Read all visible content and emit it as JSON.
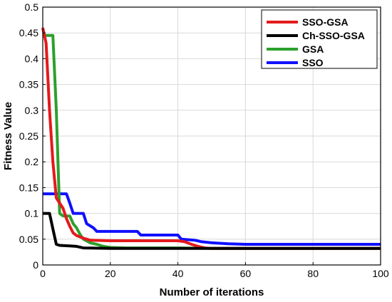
{
  "chart_data": {
    "type": "line",
    "xlabel": "Number of iterations",
    "ylabel": "Fitness Value",
    "xlim": [
      0,
      100
    ],
    "ylim": [
      0,
      0.5
    ],
    "x_ticks": [
      "0",
      "20",
      "40",
      "60",
      "80",
      "100"
    ],
    "y_ticks": [
      "0",
      "0.05",
      "0.1",
      "0.15",
      "0.2",
      "0.25",
      "0.3",
      "0.35",
      "0.4",
      "0.45",
      "0.5"
    ],
    "grid": true,
    "legend_position": "top-right",
    "series": [
      {
        "name": "SSO-GSA",
        "color": "#e31a1c",
        "points": [
          [
            0,
            0.46
          ],
          [
            1,
            0.43
          ],
          [
            2,
            0.3
          ],
          [
            3,
            0.2
          ],
          [
            4,
            0.13
          ],
          [
            6,
            0.11
          ],
          [
            7,
            0.09
          ],
          [
            8,
            0.075
          ],
          [
            9,
            0.062
          ],
          [
            10,
            0.057
          ],
          [
            12,
            0.052
          ],
          [
            14,
            0.048
          ],
          [
            20,
            0.047
          ],
          [
            30,
            0.047
          ],
          [
            40,
            0.047
          ],
          [
            42,
            0.045
          ],
          [
            44,
            0.04
          ],
          [
            46,
            0.036
          ],
          [
            48,
            0.033
          ],
          [
            50,
            0.032
          ],
          [
            60,
            0.032
          ],
          [
            80,
            0.032
          ],
          [
            100,
            0.032
          ]
        ]
      },
      {
        "name": "Ch-SSO-GSA",
        "color": "#000000",
        "points": [
          [
            0,
            0.1
          ],
          [
            2,
            0.1
          ],
          [
            3,
            0.07
          ],
          [
            4,
            0.04
          ],
          [
            5,
            0.038
          ],
          [
            8,
            0.037
          ],
          [
            10,
            0.036
          ],
          [
            12,
            0.033
          ],
          [
            20,
            0.032
          ],
          [
            40,
            0.032
          ],
          [
            60,
            0.032
          ],
          [
            80,
            0.032
          ],
          [
            100,
            0.032
          ]
        ]
      },
      {
        "name": "GSA",
        "color": "#2ca02c",
        "points": [
          [
            0,
            0.445
          ],
          [
            3,
            0.445
          ],
          [
            4,
            0.3
          ],
          [
            5,
            0.1
          ],
          [
            6,
            0.095
          ],
          [
            8,
            0.095
          ],
          [
            9,
            0.08
          ],
          [
            10,
            0.072
          ],
          [
            11,
            0.06
          ],
          [
            12,
            0.05
          ],
          [
            14,
            0.043
          ],
          [
            16,
            0.04
          ],
          [
            18,
            0.036
          ],
          [
            20,
            0.034
          ],
          [
            25,
            0.033
          ],
          [
            40,
            0.033
          ],
          [
            50,
            0.032
          ],
          [
            60,
            0.032
          ],
          [
            80,
            0.032
          ],
          [
            100,
            0.032
          ]
        ]
      },
      {
        "name": "SSO",
        "color": "#1010ff",
        "points": [
          [
            0,
            0.138
          ],
          [
            7,
            0.138
          ],
          [
            8,
            0.12
          ],
          [
            9,
            0.1
          ],
          [
            12,
            0.1
          ],
          [
            13,
            0.08
          ],
          [
            15,
            0.072
          ],
          [
            16,
            0.065
          ],
          [
            28,
            0.065
          ],
          [
            29,
            0.058
          ],
          [
            40,
            0.058
          ],
          [
            41,
            0.05
          ],
          [
            45,
            0.048
          ],
          [
            47,
            0.045
          ],
          [
            50,
            0.043
          ],
          [
            55,
            0.041
          ],
          [
            60,
            0.04
          ],
          [
            80,
            0.04
          ],
          [
            100,
            0.04
          ]
        ]
      }
    ]
  }
}
